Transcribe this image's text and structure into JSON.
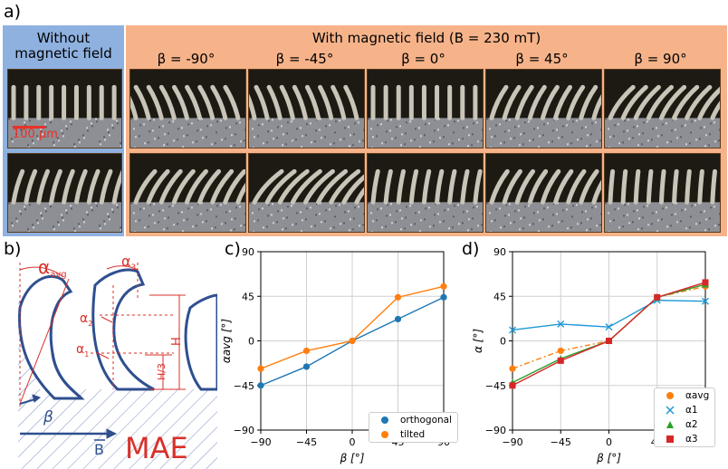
{
  "panel_a": {
    "letter": "a)",
    "without_label": "Without magnetic field",
    "with_label": "With magnetic field (B = 230 mT)",
    "beta_labels": [
      "β = -90°",
      "β = -45°",
      "β = 0°",
      "β = 45°",
      "β = 90°"
    ],
    "scale_bar": "100 µm",
    "colors": {
      "without_bg": "#8fb1e0",
      "with_bg": "#f6b38a",
      "scale": "#e8322a"
    }
  },
  "panel_b": {
    "letter": "b)",
    "labels": {
      "alpha_avg": "αavg",
      "alpha3": "α3",
      "alpha2": "α2",
      "alpha1": "α1",
      "H": "H",
      "H3": "H/3",
      "beta": "β",
      "B": "B",
      "mae": "MAE"
    },
    "colors": {
      "annot": "#d9302a",
      "shape": "#2f4f8f",
      "hatch": "#7a8fc0"
    }
  },
  "chart_data": [
    {
      "letter": "c)",
      "type": "line",
      "xlabel": "β [°]",
      "ylabel": "αavg [°]",
      "xlim": [
        -90,
        90
      ],
      "ylim": [
        -90,
        90
      ],
      "xticks": [
        -90,
        -45,
        0,
        45,
        90
      ],
      "yticks": [
        -90,
        -45,
        0,
        45,
        90
      ],
      "grid": true,
      "legend": "bottom-right",
      "series": [
        {
          "name": "orthogonal",
          "color": "#1f77b4",
          "marker": "circle",
          "style": "solid",
          "x": [
            -90,
            -45,
            0,
            45,
            90
          ],
          "y": [
            -45,
            -26,
            0,
            22,
            44
          ]
        },
        {
          "name": "tilted",
          "color": "#ff7f0e",
          "marker": "circle",
          "style": "solid",
          "x": [
            -90,
            -45,
            0,
            45,
            90
          ],
          "y": [
            -28,
            -10,
            0,
            44,
            55
          ]
        }
      ]
    },
    {
      "letter": "d)",
      "type": "line",
      "xlabel": "β [°]",
      "ylabel": "α [°]",
      "xlim": [
        -90,
        90
      ],
      "ylim": [
        -90,
        90
      ],
      "xticks": [
        -90,
        -45,
        0,
        45,
        90
      ],
      "yticks": [
        -90,
        -45,
        0,
        45,
        90
      ],
      "grid": true,
      "legend": "bottom-right",
      "series": [
        {
          "name": "αavg",
          "color": "#ff7f0e",
          "marker": "circle",
          "style": "dashdot",
          "x": [
            -90,
            -45,
            0,
            45,
            90
          ],
          "y": [
            -28,
            -10,
            0,
            44,
            55
          ]
        },
        {
          "name": "α1",
          "color": "#1f9ad6",
          "marker": "x",
          "style": "solid",
          "x": [
            -90,
            -45,
            0,
            45,
            90
          ],
          "y": [
            11,
            17,
            14,
            41,
            40
          ]
        },
        {
          "name": "α2",
          "color": "#2ca02c",
          "marker": "triangle",
          "style": "solid",
          "x": [
            -90,
            -45,
            0,
            45,
            90
          ],
          "y": [
            -42,
            -18,
            0,
            44,
            57
          ]
        },
        {
          "name": "α3",
          "color": "#d62728",
          "marker": "square",
          "style": "solid",
          "x": [
            -90,
            -45,
            0,
            45,
            90
          ],
          "y": [
            -45,
            -20,
            0,
            44,
            59
          ]
        }
      ]
    }
  ]
}
